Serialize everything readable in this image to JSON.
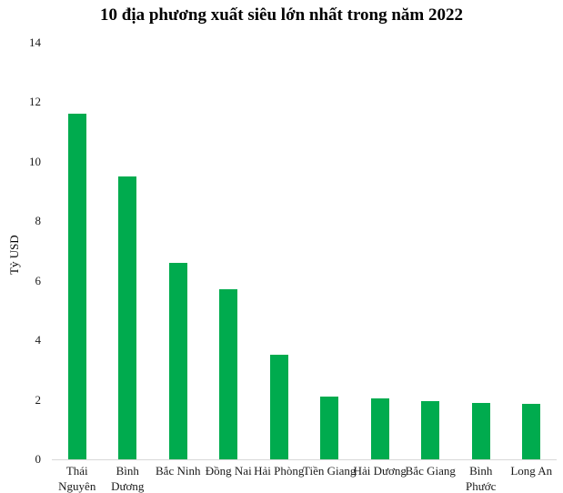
{
  "chart_data": {
    "type": "bar",
    "title": "10 địa phương xuất siêu lớn nhất trong năm 2022",
    "xlabel": "",
    "ylabel": "Tỷ USD",
    "categories": [
      "Thái Nguyên",
      "Bình Dương",
      "Bắc Ninh",
      "Đồng Nai",
      "Hải Phòng",
      "Tiền Giang",
      "Hải Dương",
      "Bắc Giang",
      "Bình Phước",
      "Long An"
    ],
    "category_display": [
      "Thái\nNguyên",
      "Bình\nDương",
      "Bắc Ninh",
      "Đồng Nai",
      "Hải Phòng",
      "Tiền Giang",
      "Hải Dương",
      "Bắc Giang",
      "Bình\nPhước",
      "Long An"
    ],
    "values": [
      11.6,
      9.5,
      6.6,
      5.7,
      3.5,
      2.1,
      2.05,
      1.95,
      1.9,
      1.85
    ],
    "yticks": [
      0,
      2,
      4,
      6,
      8,
      10,
      12,
      14
    ],
    "ylim": [
      0,
      14
    ],
    "grid": false,
    "legend": false,
    "bar_color": "#00AB4E",
    "axis_line_color": "#D8D8D8",
    "unit": "Tỷ USD"
  }
}
